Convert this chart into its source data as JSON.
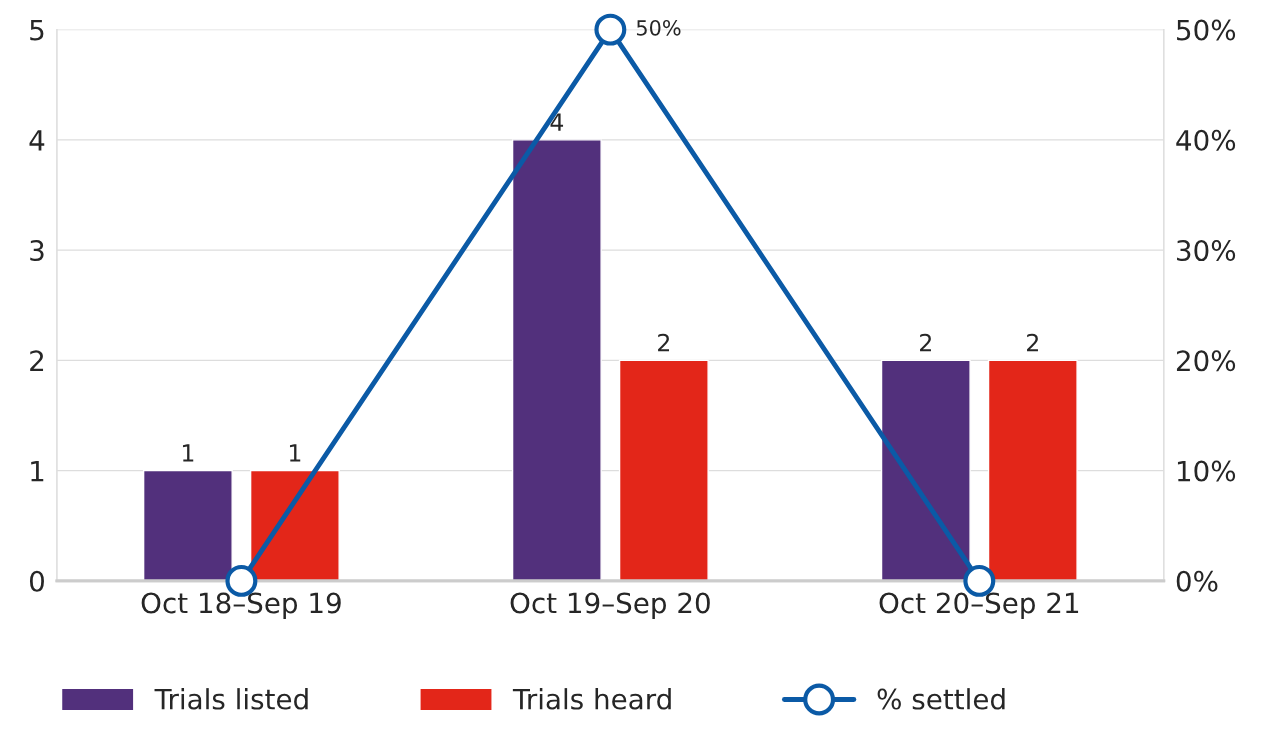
{
  "chart_data": {
    "type": "bar",
    "categories": [
      "Oct 18–Sep 19",
      "Oct 19–Sep 20",
      "Oct 20–Sep 21"
    ],
    "series": [
      {
        "name": "Trials listed",
        "color": "#52307c",
        "values": [
          1,
          4,
          2
        ],
        "value_labels": [
          "1",
          "4",
          "2"
        ]
      },
      {
        "name": "Trials heard",
        "color": "#e32619",
        "values": [
          1,
          2,
          2
        ],
        "value_labels": [
          "1",
          "2",
          "2"
        ]
      },
      {
        "name": "% settled",
        "type": "line",
        "axis": "y2",
        "color": "#0b5aa6",
        "marker": "circle",
        "line_style": "solid",
        "values": [
          0,
          50,
          0
        ],
        "value_labels": [
          null,
          "50%",
          null
        ]
      }
    ],
    "ylim": [
      0,
      5
    ],
    "yticks": [
      0,
      1,
      2,
      3,
      4,
      5
    ],
    "y2lim": [
      0,
      50
    ],
    "y2ticks": [
      {
        "value": 0,
        "label": "0%"
      },
      {
        "value": 10,
        "label": "10%"
      },
      {
        "value": 20,
        "label": "20%"
      },
      {
        "value": 30,
        "label": "30%"
      },
      {
        "value": 40,
        "label": "40%"
      },
      {
        "value": 50,
        "label": "50%"
      }
    ],
    "grid": "y",
    "legend": "bottom"
  }
}
